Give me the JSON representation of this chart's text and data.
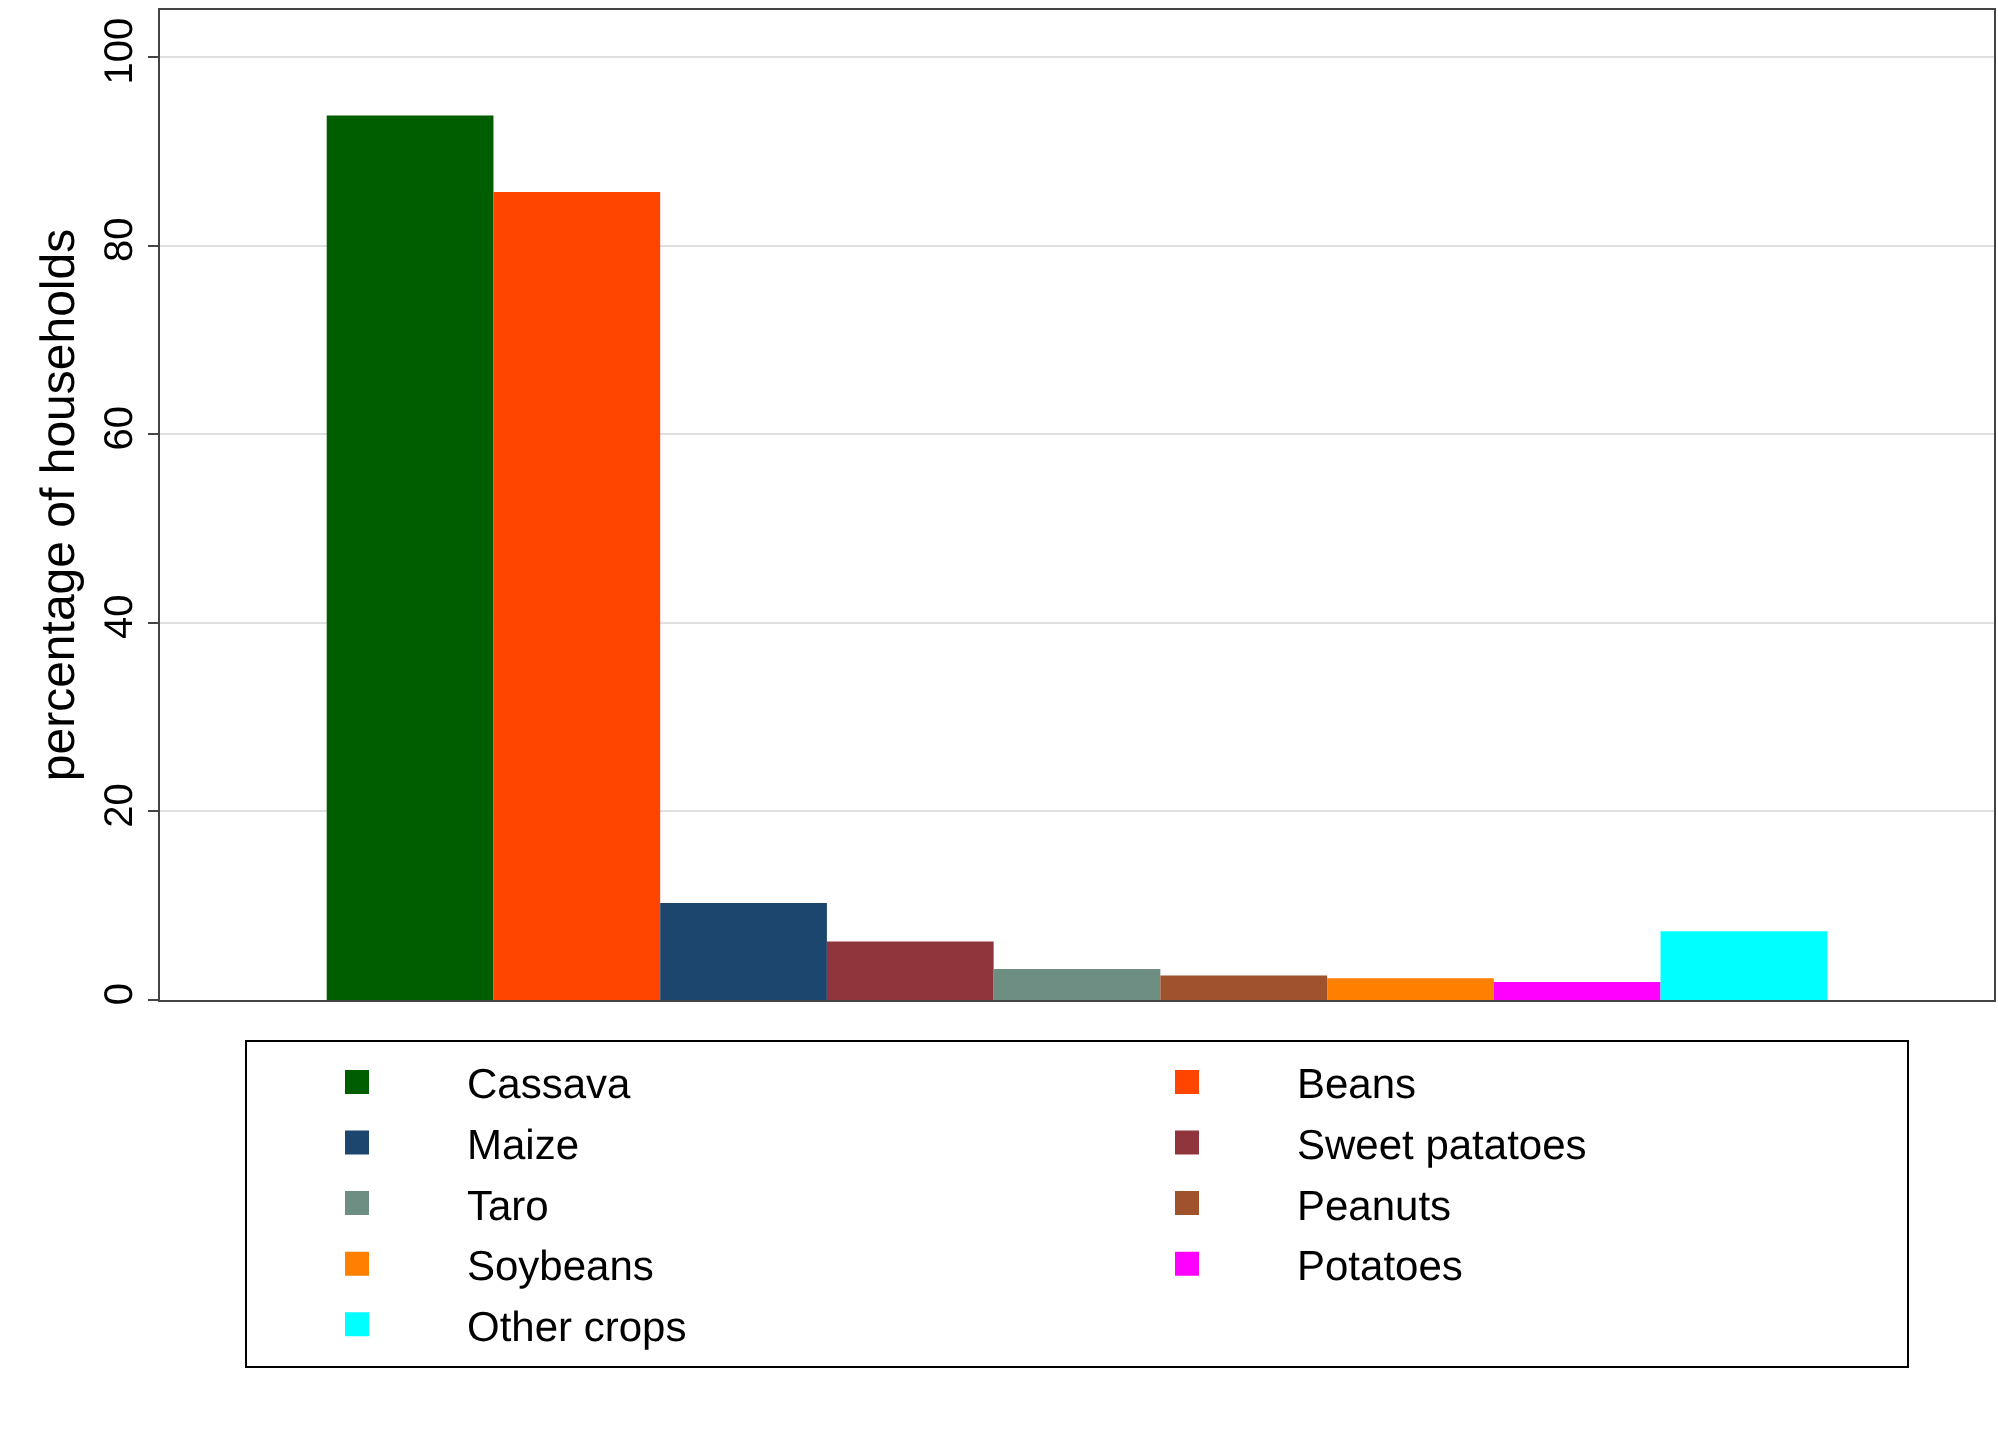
{
  "chart_data": {
    "type": "bar",
    "ylabel": "percentage of households",
    "categories": [
      null
    ],
    "series": [
      {
        "name": "Cassava",
        "color": "#005e00",
        "values": [
          93.8
        ]
      },
      {
        "name": "Beans",
        "color": "#ff4500",
        "values": [
          85.7
        ]
      },
      {
        "name": "Maize",
        "color": "#1c466e",
        "values": [
          10.3
        ]
      },
      {
        "name": "Sweet patatoes",
        "color": "#90353b",
        "values": [
          6.2
        ]
      },
      {
        "name": "Taro",
        "color": "#6e8e84",
        "values": [
          3.3
        ]
      },
      {
        "name": "Peanuts",
        "color": "#a0522d",
        "values": [
          2.6
        ]
      },
      {
        "name": "Soybeans",
        "color": "#ff7f00",
        "values": [
          2.3
        ]
      },
      {
        "name": "Potatoes",
        "color": "#ff00ff",
        "values": [
          1.9
        ]
      },
      {
        "name": "Other crops",
        "color": "#00ffff",
        "values": [
          7.3
        ]
      }
    ],
    "ylim": [
      0,
      105
    ],
    "yticks": [
      0,
      20,
      40,
      60,
      80,
      100
    ],
    "grid": "y",
    "legend": "bottom"
  }
}
